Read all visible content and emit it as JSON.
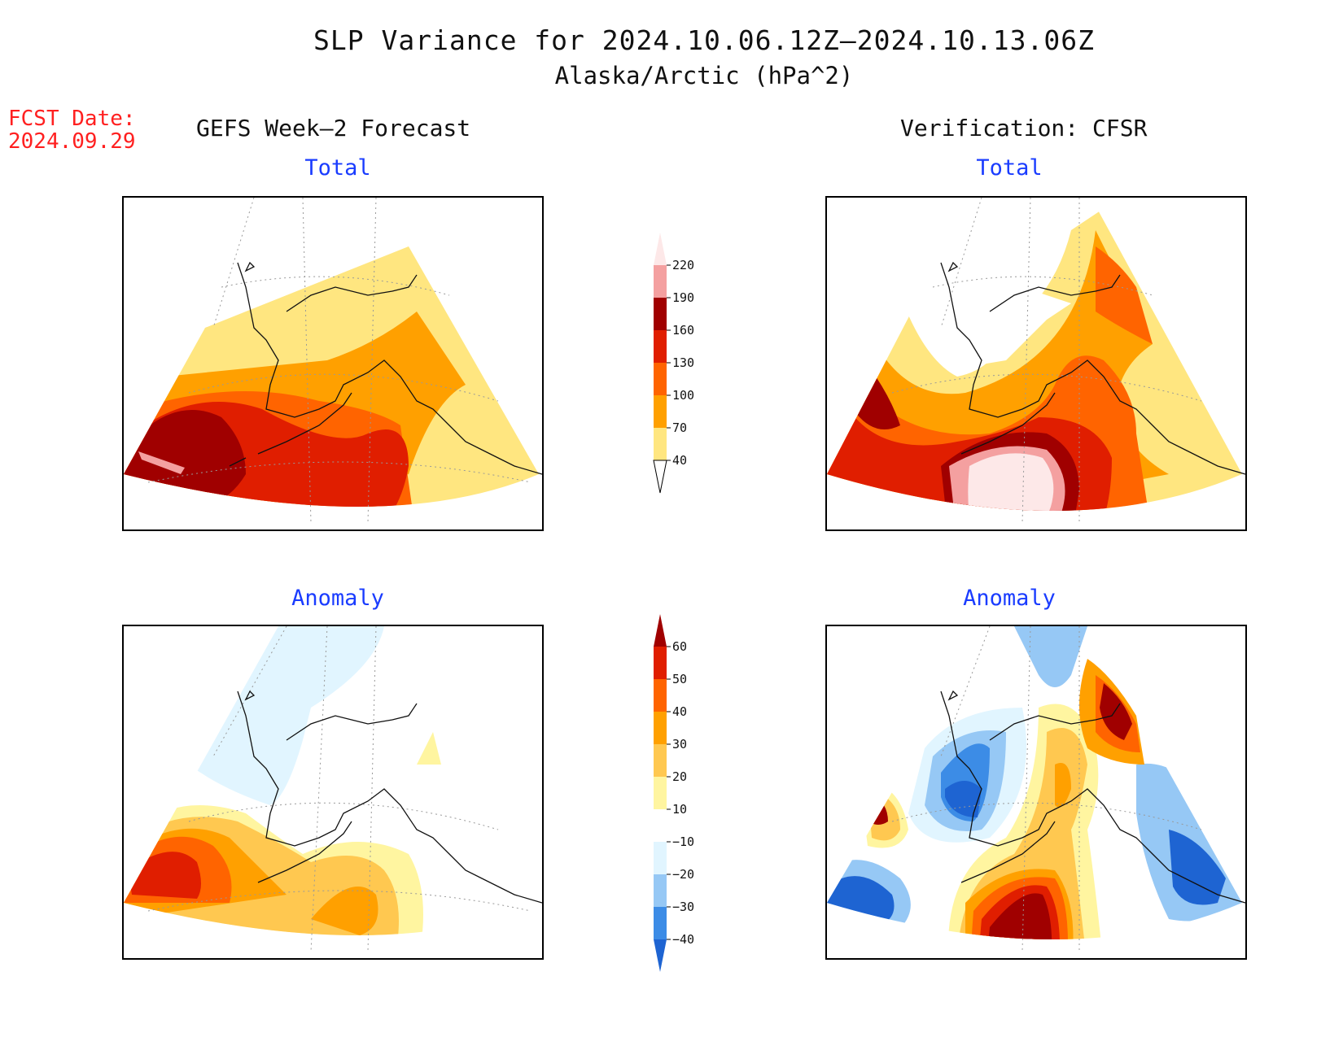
{
  "title": "SLP Variance for 2024.10.06.12Z–2024.10.13.06Z",
  "subtitle": "Alaska/Arctic (hPa^2)",
  "forecast_date": {
    "label": "FCST Date:",
    "value": "2024.09.29"
  },
  "columns": {
    "left": "GEFS Week–2 Forecast",
    "right": "Verification: CFSR"
  },
  "panels": {
    "fcst_total": "Total",
    "verif_total": "Total",
    "fcst_anomaly": "Anomaly",
    "verif_anomaly": "Anomaly"
  },
  "total_colorbar": {
    "levels": [
      "40",
      "70",
      "100",
      "130",
      "160",
      "190",
      "220"
    ],
    "colors": [
      "#ffe680",
      "#ffa000",
      "#ff6400",
      "#e01e00",
      "#a00000",
      "#f4a0a0",
      "#fde8e8"
    ]
  },
  "anomaly_colorbar": {
    "levels": [
      "−40",
      "−30",
      "−20",
      "−10",
      "10",
      "20",
      "30",
      "40",
      "50",
      "60"
    ],
    "colors": [
      "#1e64d2",
      "#3c8ce6",
      "#96c8f5",
      "#e1f5ff",
      "#ffffff",
      "#fff5a0",
      "#ffc850",
      "#ffa000",
      "#ff6400",
      "#e01e00",
      "#a00000"
    ]
  },
  "colors": {
    "light_yellow": "#ffe680",
    "orange": "#ffa000",
    "dark_orange": "#ff6400",
    "red": "#e01e00",
    "dark_red": "#a00000",
    "pink": "#f4a0a0",
    "pale_pink": "#fde8e8",
    "pale_blue": "#e1f5ff",
    "light_blue": "#96c8f5",
    "blue": "#3c8ce6",
    "dark_blue": "#1e64d2",
    "pale_yellow": "#fff5a0",
    "light_orange": "#ffc850",
    "title_blue": "#1a3cff",
    "date_red": "#ff2020"
  }
}
